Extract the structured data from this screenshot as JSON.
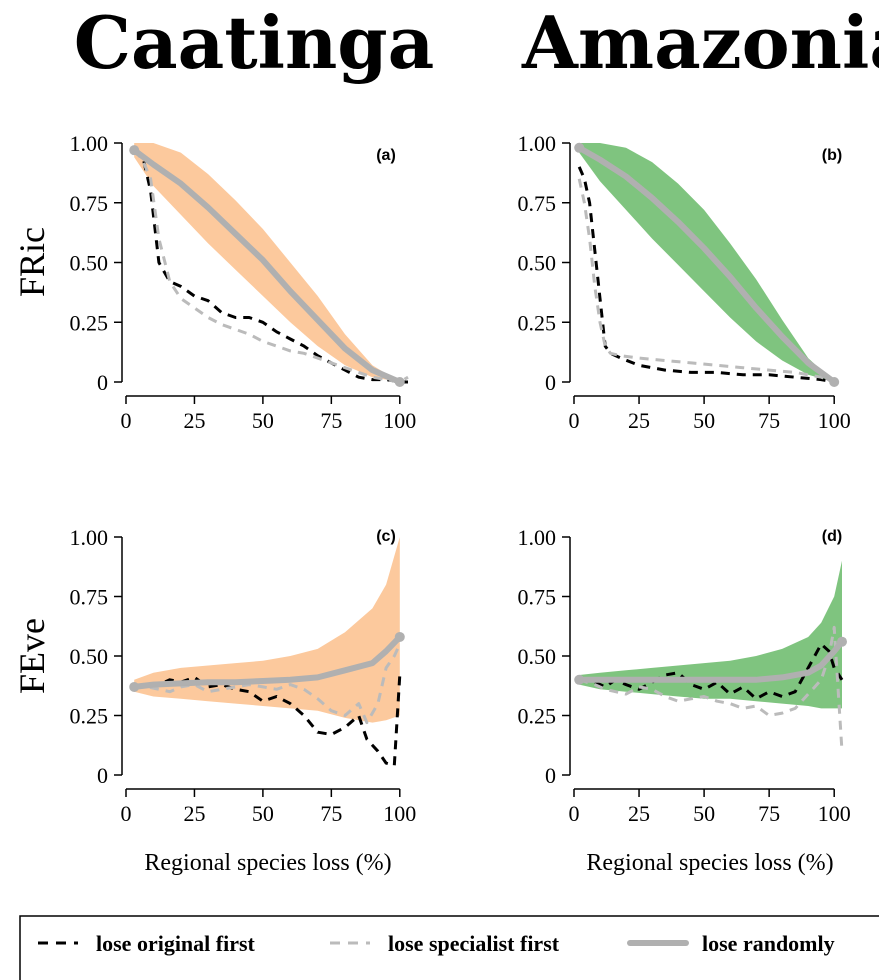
{
  "regions": [
    "Caatinga",
    "Amazonia"
  ],
  "metrics": [
    "FRic",
    "FEve"
  ],
  "xlabel": "Regional species loss (%)",
  "x_ticks": [
    0,
    25,
    50,
    75,
    100
  ],
  "y_ticks": [
    0,
    0.25,
    0.5,
    0.75,
    1.0
  ],
  "y_tick_labels": [
    "0",
    "0.25",
    "0.50",
    "0.75",
    "1.00"
  ],
  "legend": {
    "placement": "bottom",
    "items": [
      {
        "label": "lose original first",
        "style": "dashed",
        "color": "#000000"
      },
      {
        "label": "lose specialist first",
        "style": "dashed",
        "color": "#bbbbbb"
      },
      {
        "label": "lose randomly",
        "style": "solid-thick",
        "color": "#b0b0b0"
      }
    ]
  },
  "colors": {
    "caatinga_band": "#fcc99d",
    "amazonia_band": "#7fc47f",
    "random_line": "#b0b0b0",
    "specialist_line": "#bbbbbb",
    "original_line": "#000000"
  },
  "chart_data": [
    {
      "type": "line",
      "panel": "(a)",
      "region": "Caatinga",
      "ylabel": "FRic",
      "xlim": [
        0,
        103
      ],
      "ylim": [
        0,
        1.0
      ],
      "band": {
        "x": [
          3,
          10,
          20,
          30,
          40,
          50,
          60,
          70,
          80,
          90,
          100
        ],
        "lower": [
          0.94,
          0.82,
          0.7,
          0.58,
          0.47,
          0.36,
          0.25,
          0.15,
          0.07,
          0.02,
          0.0
        ],
        "upper": [
          1.0,
          1.0,
          0.96,
          0.87,
          0.76,
          0.64,
          0.5,
          0.36,
          0.2,
          0.07,
          0.0
        ]
      },
      "series": [
        {
          "name": "lose original first",
          "x": [
            3,
            6,
            9,
            12,
            16,
            20,
            25,
            30,
            35,
            40,
            45,
            50,
            55,
            60,
            65,
            70,
            75,
            80,
            85,
            90,
            95,
            100,
            103
          ],
          "y": [
            0.97,
            0.95,
            0.8,
            0.5,
            0.42,
            0.4,
            0.36,
            0.34,
            0.29,
            0.27,
            0.27,
            0.25,
            0.21,
            0.18,
            0.15,
            0.11,
            0.08,
            0.05,
            0.02,
            0.01,
            0.01,
            0.0,
            0.0
          ]
        },
        {
          "name": "lose specialist first",
          "x": [
            3,
            6,
            9,
            12,
            16,
            20,
            25,
            30,
            35,
            40,
            45,
            50,
            55,
            60,
            65,
            70,
            75,
            80,
            85,
            90,
            95,
            100,
            103
          ],
          "y": [
            0.97,
            0.93,
            0.85,
            0.6,
            0.42,
            0.35,
            0.31,
            0.27,
            0.24,
            0.22,
            0.2,
            0.17,
            0.15,
            0.13,
            0.12,
            0.1,
            0.08,
            0.06,
            0.04,
            0.02,
            0.01,
            0.0,
            0.02
          ]
        },
        {
          "name": "lose randomly",
          "x": [
            3,
            10,
            20,
            30,
            40,
            50,
            60,
            70,
            80,
            90,
            100
          ],
          "y": [
            0.97,
            0.91,
            0.83,
            0.73,
            0.62,
            0.51,
            0.38,
            0.26,
            0.14,
            0.05,
            0.0
          ]
        }
      ]
    },
    {
      "type": "line",
      "panel": "(b)",
      "region": "Amazonia",
      "ylabel": "",
      "xlim": [
        0,
        103
      ],
      "ylim": [
        0,
        1.0
      ],
      "band": {
        "x": [
          2,
          10,
          20,
          30,
          40,
          50,
          60,
          70,
          80,
          90,
          100
        ],
        "lower": [
          0.96,
          0.84,
          0.72,
          0.6,
          0.49,
          0.38,
          0.27,
          0.17,
          0.09,
          0.03,
          0.0
        ],
        "upper": [
          1.0,
          1.0,
          0.98,
          0.92,
          0.83,
          0.72,
          0.58,
          0.43,
          0.26,
          0.1,
          0.0
        ]
      },
      "series": [
        {
          "name": "lose original first",
          "x": [
            2,
            4,
            6,
            8,
            10,
            12,
            14,
            18,
            25,
            35,
            45,
            55,
            65,
            75,
            85,
            95,
            100
          ],
          "y": [
            0.9,
            0.85,
            0.75,
            0.55,
            0.35,
            0.15,
            0.12,
            0.1,
            0.07,
            0.05,
            0.04,
            0.04,
            0.03,
            0.03,
            0.02,
            0.01,
            0.0
          ]
        },
        {
          "name": "lose specialist first",
          "x": [
            2,
            4,
            6,
            8,
            10,
            12,
            14,
            18,
            25,
            35,
            45,
            55,
            65,
            75,
            85,
            95,
            100
          ],
          "y": [
            0.85,
            0.75,
            0.6,
            0.4,
            0.25,
            0.15,
            0.12,
            0.11,
            0.1,
            0.09,
            0.08,
            0.07,
            0.06,
            0.05,
            0.04,
            0.02,
            0.0
          ]
        },
        {
          "name": "lose randomly",
          "x": [
            2,
            10,
            20,
            30,
            40,
            50,
            60,
            70,
            80,
            90,
            100
          ],
          "y": [
            0.98,
            0.93,
            0.86,
            0.77,
            0.67,
            0.56,
            0.44,
            0.31,
            0.19,
            0.08,
            0.0
          ]
        }
      ]
    },
    {
      "type": "line",
      "panel": "(c)",
      "region": "Caatinga",
      "ylabel": "FEve",
      "xlim": [
        0,
        103
      ],
      "ylim": [
        0,
        1.0
      ],
      "band": {
        "x": [
          3,
          10,
          20,
          30,
          40,
          50,
          60,
          70,
          80,
          90,
          95,
          100
        ],
        "lower": [
          0.35,
          0.33,
          0.32,
          0.31,
          0.3,
          0.29,
          0.28,
          0.27,
          0.24,
          0.22,
          0.23,
          0.25
        ],
        "upper": [
          0.4,
          0.43,
          0.45,
          0.46,
          0.47,
          0.48,
          0.5,
          0.53,
          0.6,
          0.7,
          0.8,
          1.0
        ]
      },
      "series": [
        {
          "name": "lose original first",
          "x": [
            3,
            8,
            12,
            16,
            20,
            25,
            30,
            35,
            40,
            45,
            50,
            55,
            60,
            65,
            70,
            75,
            80,
            85,
            88,
            92,
            95,
            98,
            100
          ],
          "y": [
            0.38,
            0.37,
            0.38,
            0.4,
            0.39,
            0.41,
            0.37,
            0.38,
            0.36,
            0.35,
            0.31,
            0.33,
            0.3,
            0.25,
            0.18,
            0.17,
            0.2,
            0.25,
            0.15,
            0.1,
            0.05,
            0.04,
            0.42
          ]
        },
        {
          "name": "lose specialist first",
          "x": [
            3,
            8,
            12,
            16,
            20,
            25,
            30,
            35,
            40,
            45,
            50,
            55,
            60,
            65,
            70,
            75,
            80,
            85,
            88,
            92,
            95,
            98,
            100
          ],
          "y": [
            0.38,
            0.37,
            0.36,
            0.35,
            0.37,
            0.38,
            0.35,
            0.36,
            0.37,
            0.38,
            0.37,
            0.36,
            0.38,
            0.36,
            0.32,
            0.27,
            0.25,
            0.3,
            0.22,
            0.3,
            0.45,
            0.5,
            0.55
          ]
        },
        {
          "name": "lose randomly",
          "x": [
            3,
            10,
            20,
            30,
            40,
            50,
            60,
            70,
            80,
            90,
            95,
            100
          ],
          "y": [
            0.37,
            0.38,
            0.385,
            0.39,
            0.39,
            0.395,
            0.4,
            0.41,
            0.44,
            0.47,
            0.52,
            0.58
          ]
        }
      ]
    },
    {
      "type": "line",
      "panel": "(d)",
      "region": "Amazonia",
      "ylabel": "",
      "xlim": [
        0,
        103
      ],
      "ylim": [
        0,
        1.0
      ],
      "band": {
        "x": [
          2,
          10,
          20,
          30,
          40,
          50,
          60,
          70,
          80,
          90,
          95,
          100,
          103
        ],
        "lower": [
          0.38,
          0.36,
          0.35,
          0.34,
          0.33,
          0.32,
          0.32,
          0.31,
          0.3,
          0.29,
          0.28,
          0.28,
          0.28
        ],
        "upper": [
          0.42,
          0.43,
          0.44,
          0.45,
          0.46,
          0.47,
          0.48,
          0.5,
          0.53,
          0.58,
          0.64,
          0.75,
          0.9
        ]
      },
      "series": [
        {
          "name": "lose original first",
          "x": [
            2,
            8,
            12,
            16,
            20,
            25,
            30,
            35,
            40,
            45,
            50,
            55,
            60,
            65,
            70,
            75,
            80,
            85,
            90,
            95,
            98,
            100,
            103
          ],
          "y": [
            0.4,
            0.39,
            0.37,
            0.4,
            0.38,
            0.36,
            0.39,
            0.42,
            0.43,
            0.38,
            0.36,
            0.39,
            0.34,
            0.37,
            0.32,
            0.35,
            0.33,
            0.35,
            0.45,
            0.55,
            0.52,
            0.45,
            0.4
          ]
        },
        {
          "name": "lose specialist first",
          "x": [
            2,
            8,
            12,
            16,
            20,
            25,
            30,
            35,
            40,
            45,
            50,
            55,
            60,
            65,
            70,
            75,
            80,
            85,
            90,
            95,
            98,
            100,
            103
          ],
          "y": [
            0.4,
            0.38,
            0.36,
            0.35,
            0.34,
            0.37,
            0.36,
            0.33,
            0.31,
            0.32,
            0.33,
            0.31,
            0.3,
            0.28,
            0.29,
            0.25,
            0.26,
            0.28,
            0.34,
            0.4,
            0.5,
            0.62,
            0.1
          ]
        },
        {
          "name": "lose randomly",
          "x": [
            2,
            10,
            20,
            30,
            40,
            50,
            60,
            70,
            80,
            90,
            95,
            100,
            103
          ],
          "y": [
            0.4,
            0.4,
            0.4,
            0.4,
            0.4,
            0.4,
            0.4,
            0.4,
            0.41,
            0.43,
            0.46,
            0.52,
            0.56
          ]
        }
      ]
    }
  ]
}
